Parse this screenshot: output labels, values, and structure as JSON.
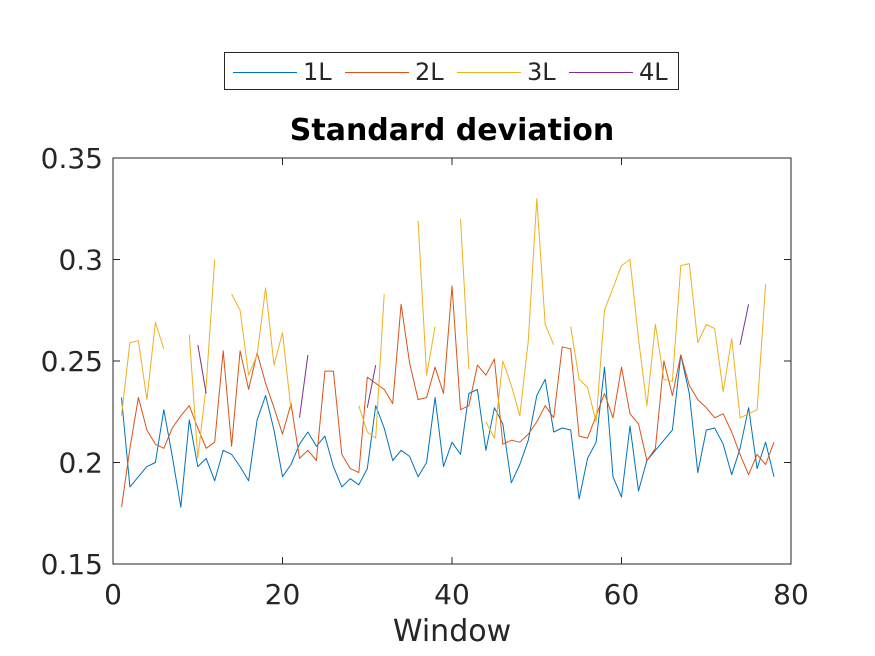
{
  "chart_data": {
    "type": "line",
    "title": "Standard deviation",
    "xlabel": "Window",
    "ylabel": "",
    "xlim": [
      0,
      80
    ],
    "ylim": [
      0.15,
      0.35
    ],
    "xticks": [
      "0",
      "20",
      "40",
      "60",
      "80"
    ],
    "yticks": [
      "0.15",
      "0.2",
      "0.25",
      "0.3",
      "0.35"
    ],
    "legend": "top-outside",
    "grid": false,
    "series": [
      {
        "name": "1L",
        "color": "#0072BD",
        "x": [
          1,
          2,
          3,
          4,
          5,
          6,
          7,
          8,
          9,
          10,
          11,
          12,
          13,
          14,
          15,
          16,
          17,
          18,
          19,
          20,
          21,
          22,
          23,
          24,
          25,
          26,
          27,
          28,
          29,
          30,
          31,
          32,
          33,
          34,
          35,
          36,
          37,
          38,
          39,
          40,
          41,
          42,
          43,
          44,
          45,
          46,
          47,
          48,
          49,
          50,
          51,
          52,
          53,
          54,
          55,
          56,
          57,
          58,
          59,
          60,
          61,
          62,
          63,
          64,
          65,
          66,
          67,
          68,
          69,
          70,
          71,
          72,
          73,
          74,
          75,
          76,
          77,
          78
        ],
        "values": [
          0.232,
          0.188,
          0.193,
          0.198,
          0.2,
          0.226,
          0.203,
          0.178,
          0.221,
          0.198,
          0.202,
          0.191,
          0.206,
          0.204,
          0.198,
          0.191,
          0.221,
          0.233,
          0.216,
          0.193,
          0.199,
          0.209,
          0.215,
          0.208,
          0.213,
          0.198,
          0.188,
          0.192,
          0.189,
          0.197,
          0.228,
          0.217,
          0.201,
          0.206,
          0.203,
          0.193,
          0.2,
          0.232,
          0.198,
          0.21,
          0.204,
          0.234,
          0.236,
          0.206,
          0.227,
          0.219,
          0.19,
          0.199,
          0.211,
          0.233,
          0.241,
          0.215,
          0.217,
          0.216,
          0.182,
          0.202,
          0.21,
          0.247,
          0.193,
          0.183,
          0.218,
          0.186,
          0.201,
          0.206,
          0.211,
          0.216,
          0.253,
          0.234,
          0.195,
          0.216,
          0.217,
          0.209,
          0.194,
          0.207,
          0.227,
          0.197,
          0.21,
          0.193
        ]
      },
      {
        "name": "2L",
        "color": "#D95319",
        "x": [
          1,
          2,
          3,
          4,
          5,
          6,
          7,
          8,
          9,
          10,
          11,
          12,
          13,
          14,
          15,
          16,
          17,
          18,
          19,
          20,
          21,
          22,
          23,
          24,
          25,
          26,
          27,
          28,
          29,
          30,
          31,
          32,
          33,
          34,
          35,
          36,
          37,
          38,
          39,
          40,
          41,
          42,
          43,
          44,
          45,
          46,
          47,
          48,
          49,
          50,
          51,
          52,
          53,
          54,
          55,
          56,
          57,
          58,
          59,
          60,
          61,
          62,
          63,
          64,
          65,
          66,
          67,
          68,
          69,
          70,
          71,
          72,
          73,
          74,
          75,
          76,
          77,
          78
        ],
        "values": [
          0.178,
          0.207,
          0.232,
          0.216,
          0.209,
          0.207,
          0.217,
          0.223,
          0.228,
          0.217,
          0.207,
          0.21,
          0.255,
          0.208,
          0.255,
          0.236,
          0.254,
          0.239,
          0.227,
          0.214,
          0.229,
          0.202,
          0.206,
          0.201,
          0.245,
          0.245,
          0.204,
          0.197,
          0.195,
          0.242,
          0.239,
          0.236,
          0.229,
          0.278,
          0.249,
          0.231,
          0.232,
          0.247,
          0.234,
          0.287,
          0.226,
          0.228,
          0.248,
          0.243,
          0.251,
          0.209,
          0.211,
          0.21,
          0.214,
          0.22,
          0.228,
          0.222,
          0.257,
          0.256,
          0.213,
          0.212,
          0.223,
          0.234,
          0.222,
          0.247,
          0.224,
          0.219,
          0.201,
          0.207,
          0.25,
          0.233,
          0.253,
          0.238,
          0.231,
          0.227,
          0.222,
          0.224,
          0.215,
          0.204,
          0.194,
          0.204,
          0.199,
          0.21
        ]
      },
      {
        "name": "3L",
        "color": "#EDB120",
        "x": [
          1,
          2,
          3,
          4,
          5,
          6,
          7,
          8,
          9,
          10,
          11,
          12,
          13,
          14,
          15,
          16,
          17,
          18,
          19,
          20,
          21,
          22,
          23,
          24,
          25,
          26,
          27,
          28,
          29,
          30,
          31,
          32,
          33,
          34,
          35,
          36,
          37,
          38,
          39,
          40,
          41,
          42,
          43,
          44,
          45,
          46,
          47,
          48,
          49,
          50,
          51,
          52,
          53,
          54,
          55,
          56,
          57,
          58,
          59,
          60,
          61,
          62,
          63,
          64,
          65,
          66,
          67,
          68,
          69,
          70,
          71,
          72,
          73,
          74,
          75,
          76,
          77,
          78
        ],
        "values": [
          0.223,
          0.259,
          0.26,
          0.231,
          0.269,
          0.256,
          null,
          null,
          0.263,
          0.202,
          0.238,
          0.3,
          null,
          0.283,
          0.275,
          0.243,
          0.253,
          0.286,
          0.248,
          0.264,
          0.226,
          null,
          null,
          null,
          null,
          null,
          null,
          null,
          0.228,
          0.215,
          0.212,
          0.283,
          null,
          null,
          null,
          0.319,
          0.243,
          0.267,
          null,
          null,
          0.32,
          0.246,
          null,
          0.22,
          0.212,
          0.25,
          0.238,
          0.223,
          0.26,
          0.33,
          0.268,
          0.258,
          null,
          0.267,
          0.241,
          0.237,
          0.22,
          0.275,
          0.286,
          0.297,
          0.3,
          0.261,
          0.228,
          0.268,
          0.241,
          0.24,
          0.297,
          0.298,
          0.259,
          0.268,
          0.266,
          0.235,
          0.261,
          0.222,
          0.224,
          0.226,
          0.288,
          null
        ]
      },
      {
        "name": "4L",
        "color": "#7E2F8E",
        "x": [
          10,
          11,
          12,
          13,
          14,
          15,
          16,
          17,
          18,
          19,
          20,
          21,
          22,
          23,
          24,
          25,
          26,
          27,
          28,
          29,
          30,
          31,
          32,
          33,
          34,
          35,
          36,
          37,
          38,
          39,
          40,
          41,
          42,
          43,
          44,
          45,
          46,
          47,
          48,
          49,
          50,
          51,
          52,
          53,
          54,
          55,
          56,
          57,
          58,
          59,
          60,
          61,
          62,
          63,
          64,
          65,
          66,
          67,
          68,
          69,
          70,
          71,
          72,
          73,
          74,
          75
        ],
        "values": [
          0.258,
          0.234,
          null,
          null,
          null,
          null,
          null,
          null,
          null,
          null,
          null,
          null,
          0.222,
          0.253,
          null,
          null,
          null,
          null,
          null,
          null,
          0.227,
          0.248,
          null,
          null,
          null,
          null,
          null,
          null,
          null,
          null,
          null,
          null,
          null,
          null,
          null,
          null,
          null,
          null,
          null,
          null,
          null,
          null,
          null,
          null,
          null,
          null,
          null,
          null,
          null,
          null,
          null,
          null,
          null,
          null,
          null,
          null,
          null,
          null,
          null,
          null,
          null,
          null,
          null,
          null,
          0.258,
          0.278
        ]
      }
    ]
  }
}
